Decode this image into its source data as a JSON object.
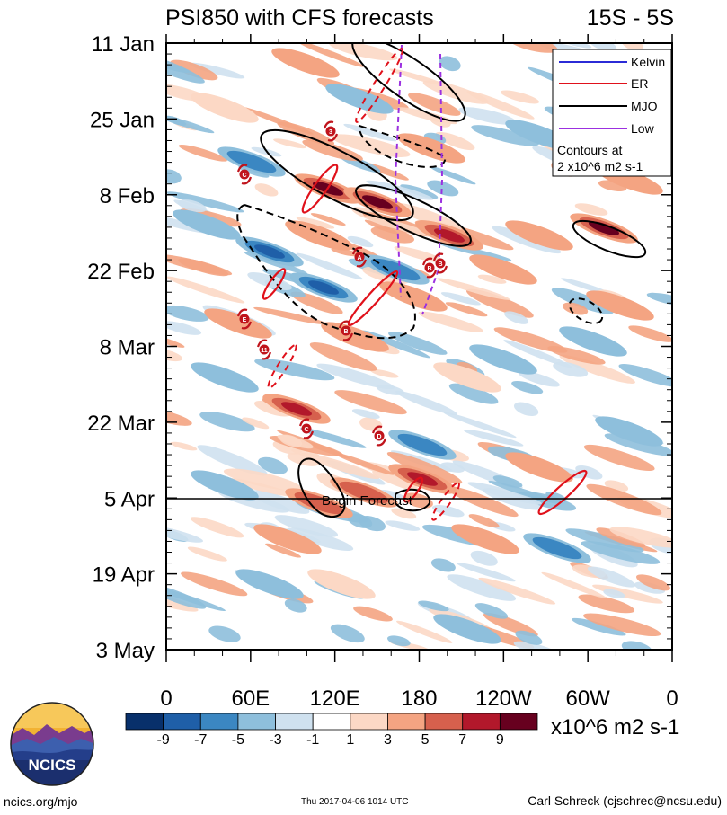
{
  "title_left": "PSI850 with CFS forecasts",
  "title_right": "15S - 5S",
  "colors": {
    "kelvin": "#2b2bd6",
    "er": "#e0111b",
    "mjo": "#000000",
    "low": "#9b30e0",
    "tc_marker": "#c0141c"
  },
  "chart_data": {
    "type": "heatmap",
    "title": "PSI850 with CFS forecasts",
    "region": "15S - 5S",
    "y_ticks": [
      "11 Jan",
      "25 Jan",
      "8 Feb",
      "22 Feb",
      "8 Mar",
      "22 Mar",
      "5 Apr",
      "19 Apr",
      "3 May"
    ],
    "x_ticks": [
      "0",
      "60E",
      "120E",
      "180",
      "120W",
      "60W",
      "0"
    ],
    "colorbar": {
      "labels": [
        "-9",
        "-7",
        "-5",
        "-3",
        "-1",
        "1",
        "3",
        "5",
        "7",
        "9"
      ],
      "colors": [
        "#08306b",
        "#1f5fa8",
        "#3b87c2",
        "#8ebfdc",
        "#cfe1ef",
        "#ffffff",
        "#fcd8c5",
        "#f4a482",
        "#d6604d",
        "#b2182b",
        "#67001f"
      ],
      "units": "x10^6 m2 s-1"
    },
    "legend": {
      "entries": [
        {
          "label": "Kelvin",
          "color": "#2b2bd6",
          "style": "solid"
        },
        {
          "label": "ER",
          "color": "#e0111b",
          "style": "solid"
        },
        {
          "label": "MJO",
          "color": "#000000",
          "style": "solid"
        },
        {
          "label": "Low",
          "color": "#9b30e0",
          "style": "solid"
        }
      ],
      "contour_note_line1": "Contours at",
      "contour_note_line2": "2 x10^6 m2 s-1",
      "position": "top-right"
    },
    "forecast_marker": {
      "date": "5 Apr",
      "label": "Begin Forecast"
    },
    "tropical_cyclones": [
      {
        "label": "3",
        "lon": 118,
        "date": "Jan 29"
      },
      {
        "label": "C",
        "lon": 56,
        "date": "Feb 5"
      },
      {
        "label": "A",
        "lon": 138,
        "date": "Feb 18"
      },
      {
        "label": "B",
        "lon": 174,
        "date": "Feb 21"
      },
      {
        "label": "B",
        "lon": 180,
        "date": "Feb 20"
      },
      {
        "label": "E",
        "lon": 56,
        "date": "Mar 2"
      },
      {
        "label": "B",
        "lon": 129,
        "date": "Mar 6"
      },
      {
        "label": "11",
        "lon": 70,
        "date": "Mar 9"
      },
      {
        "label": "C",
        "lon": 100,
        "date": "Mar 25"
      },
      {
        "label": "D",
        "lon": 152,
        "date": "Mar 26"
      }
    ]
  },
  "footer": {
    "left": "ncics.org/mjo",
    "center": "Thu 2017-04-06 1014 UTC",
    "right": "Carl Schreck (cjschrec@ncsu.edu)"
  },
  "logo_text": "NCICS"
}
